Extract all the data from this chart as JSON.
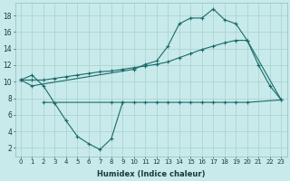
{
  "xlabel": "Humidex (Indice chaleur)",
  "background_color": "#c8eaea",
  "grid_color": "#a8d0ce",
  "line_color": "#1a6b6b",
  "xlim": [
    -0.5,
    23.5
  ],
  "ylim": [
    1,
    19.5
  ],
  "xticks": [
    0,
    1,
    2,
    3,
    4,
    5,
    6,
    7,
    8,
    9,
    10,
    11,
    12,
    13,
    14,
    15,
    16,
    17,
    18,
    19,
    20,
    21,
    22,
    23
  ],
  "yticks": [
    2,
    4,
    6,
    8,
    10,
    12,
    14,
    16,
    18
  ],
  "line1_x": [
    0,
    1,
    2,
    3,
    4,
    5,
    6,
    7,
    8,
    9
  ],
  "line1_y": [
    10.2,
    10.8,
    9.5,
    7.4,
    5.3,
    3.4,
    2.5,
    1.8,
    3.1,
    7.5
  ],
  "line2_x": [
    2,
    8,
    9,
    10,
    11,
    12,
    13,
    14,
    15,
    16,
    17,
    18,
    19,
    20,
    23
  ],
  "line2_y": [
    7.5,
    7.5,
    7.5,
    7.5,
    7.5,
    7.5,
    7.5,
    7.5,
    7.5,
    7.5,
    7.5,
    7.5,
    7.5,
    7.5,
    7.8
  ],
  "line3_x": [
    0,
    1,
    10,
    11,
    12,
    13,
    14,
    15,
    16,
    17,
    18,
    19,
    20,
    21,
    22,
    23
  ],
  "line3_y": [
    10.2,
    9.5,
    11.5,
    12.1,
    12.5,
    14.3,
    17.0,
    17.7,
    17.7,
    18.8,
    17.5,
    17.0,
    15.0,
    12.0,
    9.5,
    7.8
  ],
  "line4_x": [
    0,
    1,
    2,
    3,
    4,
    5,
    6,
    7,
    8,
    9,
    10,
    11,
    12,
    13,
    14,
    15,
    16,
    17,
    18,
    19,
    20,
    23
  ],
  "line4_y": [
    10.2,
    10.2,
    10.2,
    10.4,
    10.6,
    10.8,
    11.0,
    11.2,
    11.3,
    11.5,
    11.7,
    11.9,
    12.1,
    12.4,
    12.9,
    13.4,
    13.9,
    14.3,
    14.7,
    15.0,
    15.0,
    7.8
  ]
}
